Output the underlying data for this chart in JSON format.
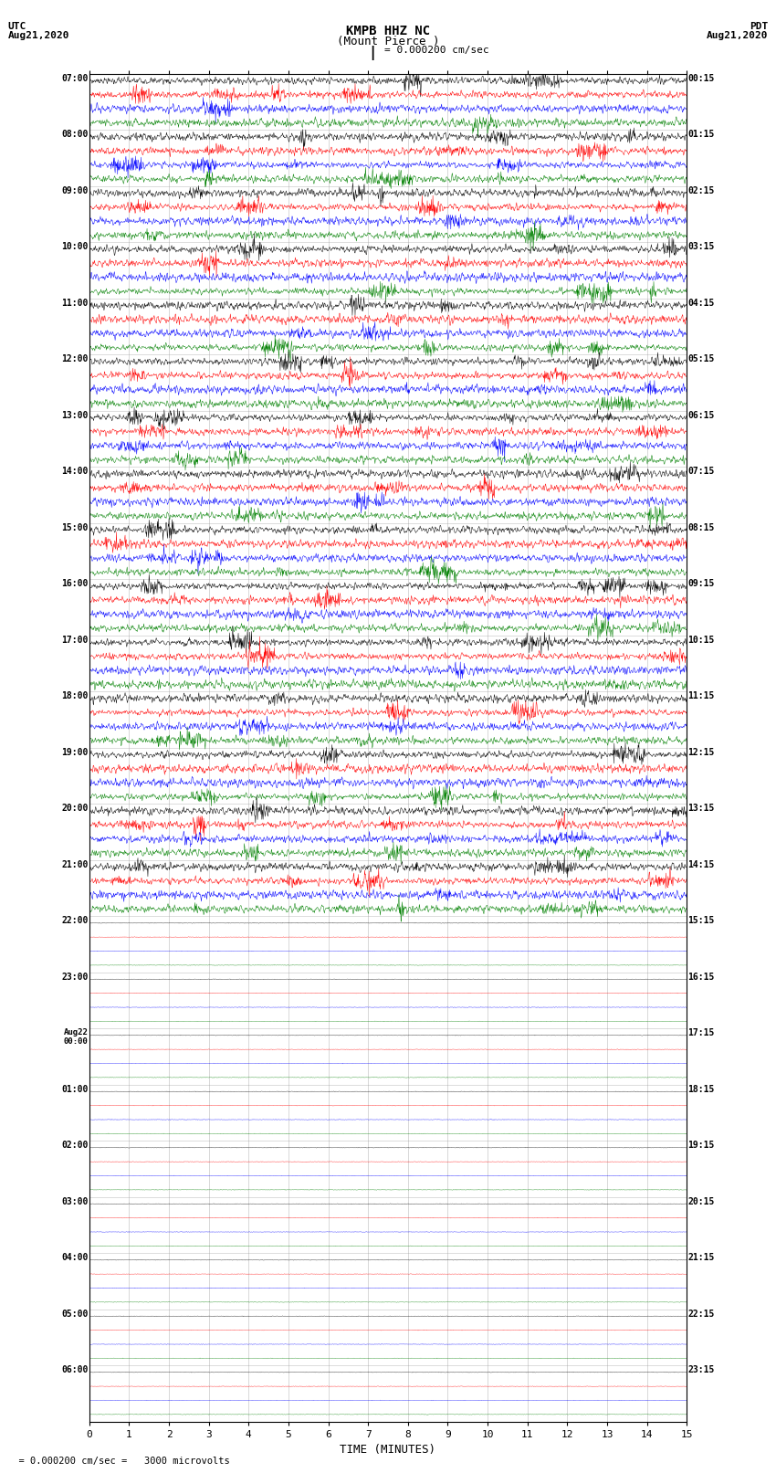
{
  "title_line1": "KMPB HHZ NC",
  "title_line2": "(Mount Pierce )",
  "scale_text": "= 0.000200 cm/sec",
  "bottom_text": "  = 0.000200 cm/sec =   3000 microvolts",
  "left_label": "UTC",
  "left_date": "Aug21,2020",
  "right_label": "PDT",
  "right_date": "Aug21,2020",
  "xlabel": "TIME (MINUTES)",
  "fig_width": 8.5,
  "fig_height": 16.13,
  "bg_color": "#ffffff",
  "trace_colors": [
    "black",
    "red",
    "blue",
    "green"
  ],
  "xmin": 0,
  "xmax": 15,
  "xticks": [
    0,
    1,
    2,
    3,
    4,
    5,
    6,
    7,
    8,
    9,
    10,
    11,
    12,
    13,
    14,
    15
  ],
  "grid_color": "#bbbbbb",
  "left_labels_utc": [
    "07:00",
    "08:00",
    "09:00",
    "10:00",
    "11:00",
    "12:00",
    "13:00",
    "14:00",
    "15:00",
    "16:00",
    "17:00",
    "18:00",
    "19:00",
    "20:00",
    "21:00",
    "22:00",
    "23:00",
    "Aug22\n00:00",
    "01:00",
    "02:00",
    "03:00",
    "04:00",
    "05:00",
    "06:00"
  ],
  "right_labels_pdt": [
    "00:15",
    "01:15",
    "02:15",
    "03:15",
    "04:15",
    "05:15",
    "06:15",
    "07:15",
    "08:15",
    "09:15",
    "10:15",
    "11:15",
    "12:15",
    "13:15",
    "14:15",
    "15:15",
    "16:15",
    "17:15",
    "18:15",
    "19:15",
    "20:15",
    "21:15",
    "22:15",
    "23:15"
  ],
  "num_hour_blocks": 24,
  "traces_per_block": 4,
  "active_blocks": 15,
  "trace_amplitude_active": 0.35,
  "trace_amplitude_inactive": 0.04,
  "N_points": 1500
}
